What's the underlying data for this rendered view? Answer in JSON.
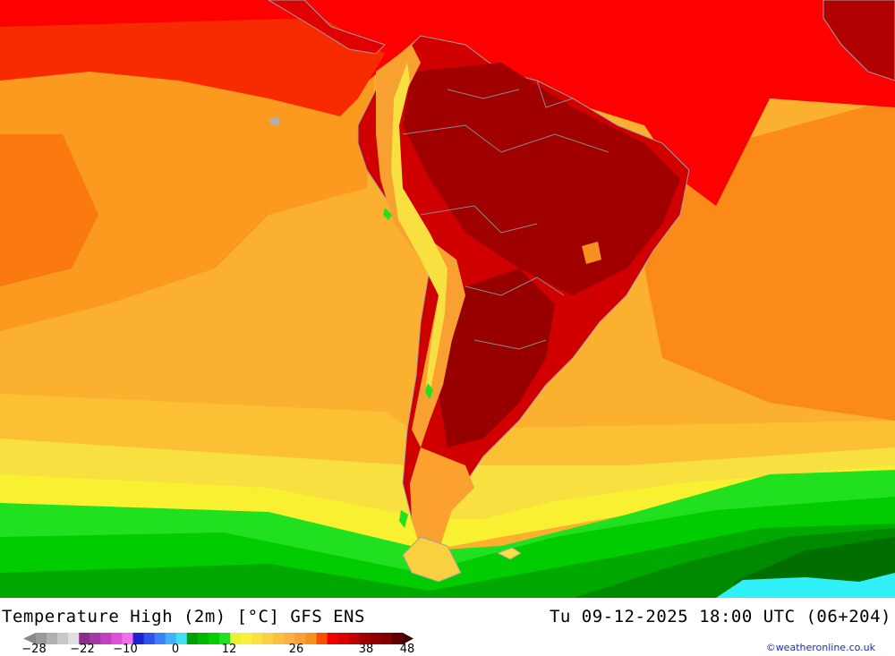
{
  "header": {
    "title": "Temperature High (2m) [°C] GFS ENS",
    "validity": "Tu 09-12-2025 18:00 UTC (06+204)",
    "credit": "©weatheronline.co.uk"
  },
  "legend": {
    "ticks": [
      "-28",
      "-22",
      "-10",
      "0",
      "12",
      "26",
      "38",
      "48"
    ],
    "colors": [
      "#9a9a9a",
      "#b0b0b0",
      "#c8c8c8",
      "#e0e0e0",
      "#8a2e8a",
      "#a33aa3",
      "#c040c0",
      "#dc50dc",
      "#f070f0",
      "#2020d0",
      "#3050f0",
      "#3c80f8",
      "#40b0f8",
      "#40e0f0",
      "#00a000",
      "#00b800",
      "#00d000",
      "#20e020",
      "#e8f030",
      "#f8f040",
      "#f8e040",
      "#f8d040",
      "#f8c040",
      "#f8b040",
      "#f8a030",
      "#f89020",
      "#f85000",
      "#f00000",
      "#d80000",
      "#c00000",
      "#a00000",
      "#900000",
      "#800000",
      "#600000"
    ]
  },
  "map": {
    "palette": {
      "ocean_red": "#ff0000",
      "ocean_orange_red": "#fa5a00",
      "ocean_orange": "#fc9a20",
      "ocean_light_orange": "#fcb030",
      "ocean_yellow_orange": "#fcc035",
      "yellow": "#f8f030",
      "green_light": "#30ee30",
      "green": "#00d200",
      "green_dark": "#00a800",
      "green_darker": "#007a00",
      "cyan": "#30f0f8",
      "land_dark_red": "#a00000",
      "land_red": "#d00000",
      "coast": "#a0a0a0"
    }
  }
}
